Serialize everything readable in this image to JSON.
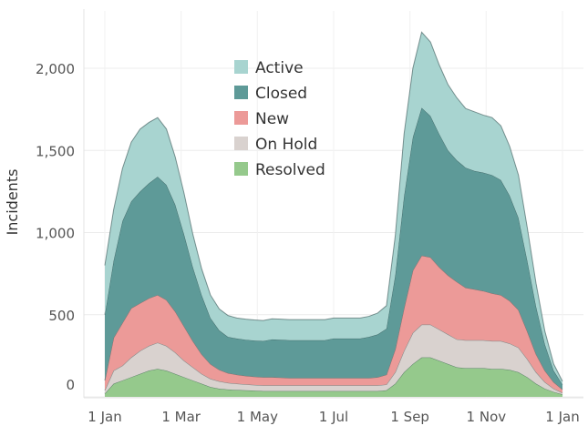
{
  "chart_data": {
    "type": "area",
    "stacked": true,
    "ylabel": "Incidents",
    "xlabel": "",
    "title": "",
    "ylim": [
      0,
      2300
    ],
    "grid": true,
    "legend_position": "top-center",
    "x_ticks": [
      "1 Jan",
      "1 Mar",
      "1 May",
      "1 Jul",
      "1 Sep",
      "1 Nov",
      "1 Jan"
    ],
    "y_ticks": [
      {
        "value": 0,
        "label": "0"
      },
      {
        "value": 500,
        "label": "500"
      },
      {
        "value": 1000,
        "label": "1,000"
      },
      {
        "value": 1500,
        "label": "1,500"
      },
      {
        "value": 2000,
        "label": "2,000"
      }
    ],
    "x_unit": "week of year",
    "x": [
      0,
      1,
      2,
      3,
      4,
      5,
      6,
      7,
      8,
      9,
      10,
      11,
      12,
      13,
      14,
      15,
      16,
      17,
      18,
      19,
      20,
      21,
      22,
      23,
      24,
      25,
      26,
      27,
      28,
      29,
      30,
      31,
      32,
      33,
      34,
      35,
      36,
      37,
      38,
      39,
      40,
      41,
      42,
      43,
      44,
      45,
      46,
      47,
      48,
      49,
      50,
      51,
      52
    ],
    "series": [
      {
        "name": "Resolved",
        "color": "#95c98c",
        "values": [
          20,
          80,
          100,
          120,
          140,
          160,
          170,
          160,
          140,
          120,
          100,
          80,
          60,
          50,
          45,
          42,
          40,
          38,
          35,
          35,
          35,
          35,
          35,
          35,
          35,
          35,
          35,
          35,
          35,
          35,
          35,
          35,
          40,
          80,
          150,
          200,
          240,
          240,
          220,
          200,
          180,
          175,
          175,
          175,
          170,
          170,
          165,
          150,
          120,
          80,
          50,
          30,
          15
        ]
      },
      {
        "name": "On Hold",
        "color": "#d9d2cf",
        "values": [
          20,
          80,
          90,
          120,
          140,
          150,
          160,
          150,
          130,
          100,
          80,
          60,
          50,
          45,
          40,
          38,
          36,
          35,
          35,
          35,
          35,
          35,
          35,
          35,
          35,
          35,
          35,
          35,
          35,
          35,
          35,
          35,
          35,
          70,
          130,
          190,
          200,
          200,
          190,
          180,
          170,
          170,
          170,
          170,
          170,
          170,
          160,
          150,
          110,
          70,
          40,
          20,
          10
        ]
      },
      {
        "name": "New",
        "color": "#ec9a98",
        "values": [
          60,
          200,
          260,
          300,
          290,
          290,
          290,
          280,
          250,
          210,
          160,
          120,
          90,
          70,
          60,
          55,
          52,
          50,
          50,
          50,
          48,
          45,
          45,
          45,
          45,
          45,
          45,
          45,
          45,
          45,
          45,
          50,
          60,
          140,
          260,
          380,
          420,
          410,
          380,
          360,
          350,
          320,
          310,
          300,
          290,
          280,
          260,
          230,
          170,
          110,
          70,
          40,
          20
        ]
      },
      {
        "name": "Closed",
        "color": "#5e9a98",
        "values": [
          400,
          470,
          620,
          650,
          680,
          700,
          720,
          700,
          650,
          560,
          450,
          360,
          280,
          240,
          220,
          220,
          220,
          220,
          220,
          230,
          230,
          230,
          230,
          230,
          230,
          230,
          240,
          240,
          240,
          240,
          250,
          260,
          280,
          450,
          680,
          810,
          900,
          860,
          810,
          760,
          740,
          730,
          720,
          720,
          720,
          700,
          640,
          560,
          430,
          290,
          160,
          70,
          30
        ]
      },
      {
        "name": "Active",
        "color": "#a8d4d0",
        "values": [
          300,
          310,
          320,
          360,
          380,
          370,
          360,
          340,
          290,
          250,
          200,
          160,
          140,
          130,
          130,
          125,
          125,
          125,
          125,
          125,
          125,
          125,
          125,
          125,
          125,
          125,
          125,
          125,
          125,
          125,
          125,
          130,
          140,
          240,
          380,
          420,
          460,
          450,
          420,
          400,
          380,
          360,
          360,
          350,
          350,
          330,
          300,
          260,
          200,
          140,
          80,
          40,
          20
        ]
      }
    ],
    "legend_order": [
      "Active",
      "Closed",
      "New",
      "On Hold",
      "Resolved"
    ]
  }
}
